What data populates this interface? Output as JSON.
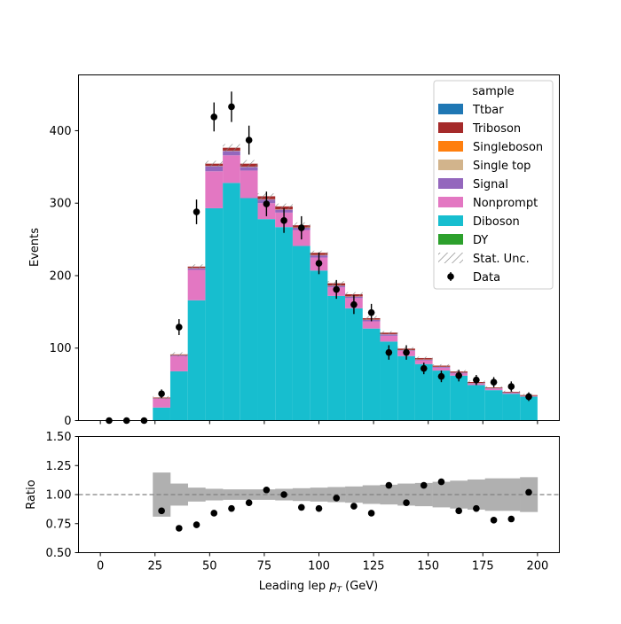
{
  "chart_data": [
    {
      "type": "bar",
      "subtype": "stacked-histogram",
      "ylabel": "Events",
      "xlim": [
        -10,
        210
      ],
      "ylim": [
        0,
        477
      ],
      "bin_edges": [
        0,
        8,
        16,
        24,
        32,
        40,
        48,
        56,
        64,
        72,
        80,
        88,
        96,
        104,
        112,
        120,
        128,
        136,
        144,
        152,
        160,
        168,
        176,
        184,
        192,
        200
      ],
      "y_ticks": [
        0,
        100,
        200,
        300,
        400
      ],
      "legend": {
        "title": "sample",
        "placement": "top-right",
        "entries": [
          "Ttbar",
          "Triboson",
          "Singleboson",
          "Single top",
          "Signal",
          "Nonprompt",
          "Diboson",
          "DY",
          "Stat. Unc.",
          "Data"
        ]
      },
      "series": [
        {
          "name": "DY",
          "color": "#2ca02c",
          "values": [
            0,
            0,
            0,
            0,
            0,
            0,
            0,
            0,
            0,
            0,
            0,
            0,
            0,
            0,
            0,
            0,
            0,
            0,
            0,
            0,
            0,
            0,
            0,
            0,
            0
          ]
        },
        {
          "name": "Diboson",
          "color": "#17becf",
          "values": [
            0,
            0,
            0,
            18,
            68,
            166,
            293,
            328,
            307,
            278,
            267,
            241,
            207,
            172,
            155,
            127,
            109,
            89,
            78,
            69,
            62,
            49,
            42,
            37,
            33
          ]
        },
        {
          "name": "Nonprompt",
          "color": "#e377c2",
          "values": [
            0,
            0,
            0,
            12,
            21,
            42,
            51,
            38,
            38,
            22,
            20,
            22,
            18,
            12,
            14,
            10,
            8,
            7,
            5,
            4,
            3,
            2,
            2,
            1,
            1
          ]
        },
        {
          "name": "Signal",
          "color": "#9467bd",
          "values": [
            0,
            0,
            0,
            0.5,
            1,
            2,
            7,
            6,
            5,
            5,
            4,
            3,
            3,
            2,
            2,
            2,
            2,
            1,
            1,
            1,
            1,
            0.5,
            0.5,
            0.5,
            0
          ]
        },
        {
          "name": "Single top",
          "color": "#d2b48c",
          "values": [
            0,
            0,
            0,
            0.3,
            0.3,
            0.5,
            0.5,
            0.5,
            0.5,
            0.5,
            0.5,
            0.5,
            0.5,
            0.5,
            0.3,
            0.3,
            0.3,
            0.3,
            0.3,
            0.3,
            0.2,
            0.2,
            0.2,
            0.2,
            0.2
          ]
        },
        {
          "name": "Singleboson",
          "color": "#ff7f0e",
          "values": [
            0,
            0,
            0,
            0,
            0,
            0,
            0,
            0,
            0,
            0,
            0,
            0,
            0,
            0,
            0,
            0,
            0,
            0,
            0,
            0,
            0,
            0,
            0,
            0,
            0
          ]
        },
        {
          "name": "Triboson",
          "color": "#a52a2a",
          "values": [
            0,
            0,
            0,
            1,
            1,
            2,
            3,
            4,
            4,
            4,
            4,
            3,
            3,
            3,
            3,
            2,
            2,
            2,
            2,
            1.5,
            1.5,
            1.5,
            1,
            1,
            1
          ]
        },
        {
          "name": "Ttbar",
          "color": "#1f77b4",
          "values": [
            0,
            0,
            0,
            0,
            0,
            0,
            0,
            0,
            0,
            0,
            0,
            0,
            0,
            0,
            0,
            0,
            0,
            0,
            0,
            0,
            0,
            0,
            0,
            0,
            0
          ]
        }
      ],
      "stat_unc": [
        0,
        0,
        0,
        2,
        3,
        3,
        4,
        5,
        5,
        4,
        4,
        4,
        3,
        3,
        3,
        3,
        2,
        2,
        2,
        2,
        2,
        2,
        1.5,
        1.5,
        1.5
      ],
      "data": {
        "name": "Data",
        "x": [
          4,
          12,
          20,
          28,
          36,
          44,
          52,
          60,
          68,
          76,
          84,
          92,
          100,
          108,
          116,
          124,
          132,
          140,
          148,
          156,
          164,
          172,
          180,
          188,
          196
        ],
        "y": [
          0,
          0,
          0,
          37,
          129,
          288,
          419,
          433,
          387,
          299,
          276,
          266,
          217,
          181,
          160,
          149,
          94,
          94,
          72,
          61,
          62,
          56,
          53,
          47,
          33
        ],
        "err": [
          0,
          0,
          0,
          6,
          11,
          17,
          20,
          21,
          20,
          17,
          17,
          16,
          15,
          13,
          13,
          12,
          10,
          10,
          8,
          8,
          8,
          7,
          7,
          7,
          6
        ]
      }
    },
    {
      "type": "scatter",
      "subtype": "ratio",
      "xlabel": "Leading lep $p_T$ (GeV)",
      "ylabel": "Ratio",
      "xlim": [
        -10,
        210
      ],
      "ylim": [
        0.5,
        1.5
      ],
      "x_ticks": [
        0,
        25,
        50,
        75,
        100,
        125,
        150,
        175,
        200
      ],
      "y_ticks": [
        "0.50",
        "0.75",
        "1.00",
        "1.25",
        "1.50"
      ],
      "reference_line": 1.0,
      "band_color": "#b0b0b0",
      "band": {
        "x_edges": [
          24,
          32,
          40,
          48,
          56,
          64,
          72,
          80,
          88,
          96,
          104,
          112,
          120,
          128,
          136,
          144,
          152,
          160,
          168,
          176,
          184,
          192,
          200
        ],
        "half_width": [
          0.19,
          0.095,
          0.06,
          0.05,
          0.045,
          0.045,
          0.045,
          0.05,
          0.055,
          0.06,
          0.065,
          0.07,
          0.08,
          0.085,
          0.095,
          0.1,
          0.11,
          0.12,
          0.13,
          0.14,
          0.14,
          0.15,
          0.19
        ]
      },
      "points": {
        "x": [
          28,
          36,
          44,
          52,
          60,
          68,
          76,
          84,
          92,
          100,
          108,
          116,
          124,
          132,
          140,
          148,
          156,
          164,
          172,
          180,
          188,
          196
        ],
        "y": [
          0.86,
          0.71,
          0.74,
          0.84,
          0.88,
          0.93,
          1.04,
          1.0,
          0.89,
          0.88,
          0.97,
          0.9,
          0.84,
          1.08,
          0.93,
          1.08,
          1.11,
          0.86,
          0.88,
          0.78,
          0.79,
          1.02
        ]
      }
    }
  ]
}
